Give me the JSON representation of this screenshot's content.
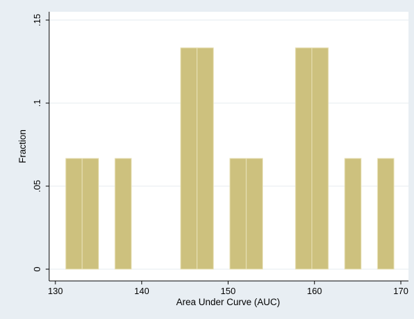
{
  "chart_data": {
    "type": "bar",
    "title": "",
    "xlabel": "Area Under Curve (AUC)",
    "ylabel": "Fraction",
    "xlim": [
      130,
      170
    ],
    "ylim": [
      0,
      0.15
    ],
    "xticks": [
      130,
      140,
      150,
      160,
      170
    ],
    "xtick_labels": [
      "130",
      "140",
      "150",
      "160",
      "170"
    ],
    "yticks": [
      0,
      0.05,
      0.1,
      0.15
    ],
    "ytick_labels": [
      "0",
      ".05",
      ".1",
      ".15"
    ],
    "bin_width": 1.9,
    "bars": [
      {
        "x_start": 131.2,
        "value": 0.0667
      },
      {
        "x_start": 133.1,
        "value": 0.0667
      },
      {
        "x_start": 136.9,
        "value": 0.0667
      },
      {
        "x_start": 144.5,
        "value": 0.1333
      },
      {
        "x_start": 146.4,
        "value": 0.1333
      },
      {
        "x_start": 150.2,
        "value": 0.0667
      },
      {
        "x_start": 152.1,
        "value": 0.0667
      },
      {
        "x_start": 157.8,
        "value": 0.1333
      },
      {
        "x_start": 159.7,
        "value": 0.1333
      },
      {
        "x_start": 163.5,
        "value": 0.0667
      },
      {
        "x_start": 167.3,
        "value": 0.0667
      }
    ],
    "grid": true,
    "colors": {
      "bar_fill": "#cdc17e",
      "bar_edge": "#e9e2b9",
      "plot_background": "#ffffff",
      "outer_background": "#e8eef3",
      "grid": "#e6ebef",
      "axis": "#000000"
    }
  }
}
